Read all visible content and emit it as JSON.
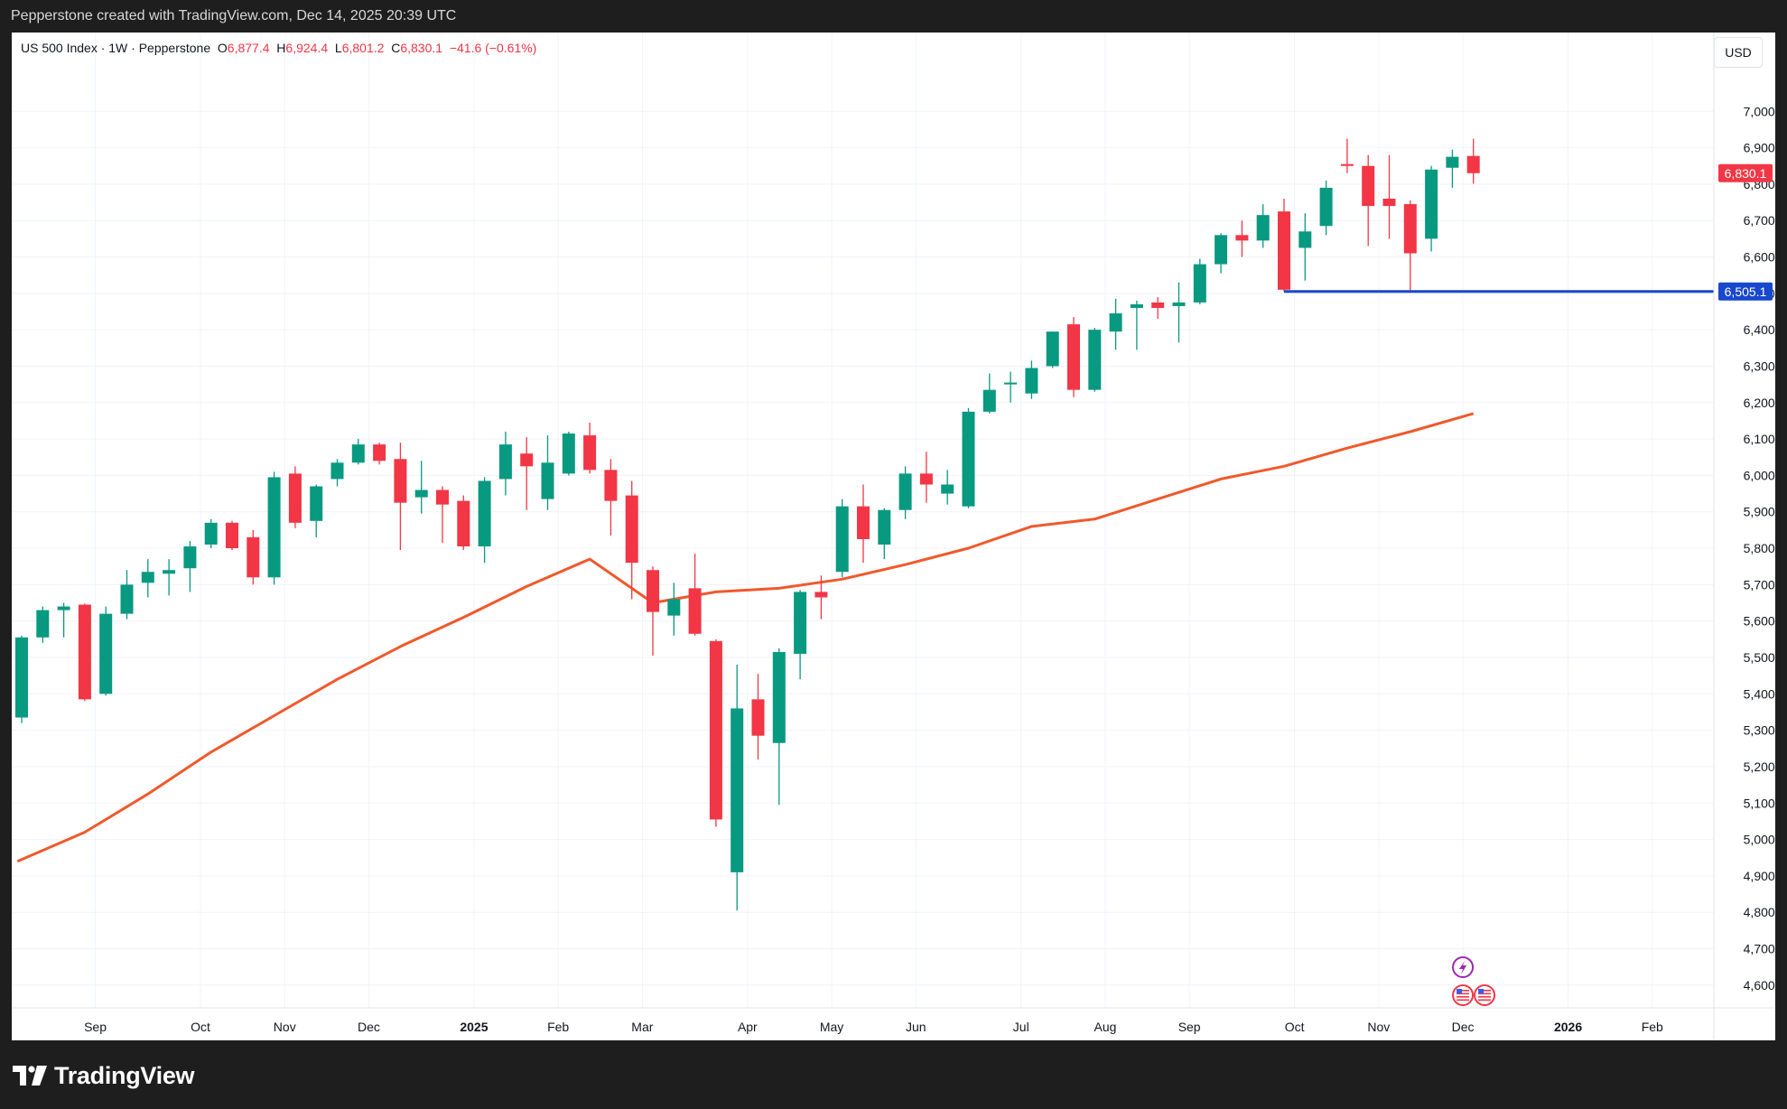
{
  "header": {
    "attribution": "Pepperstone created with TradingView.com, Dec 14, 2025 20:39 UTC"
  },
  "legend": {
    "symbol": "US 500 Index · 1W · Pepperstone",
    "o_label": "O",
    "o_value": "6,877.4",
    "h_label": "H",
    "h_value": "6,924.4",
    "l_label": "L",
    "l_value": "6,801.2",
    "c_label": "C",
    "c_value": "6,830.1",
    "change": "−41.6 (−0.61%)"
  },
  "currency": "USD",
  "price_badges": {
    "last": "6,830.1",
    "level": "6,505.1"
  },
  "footer": {
    "logo_text": "TradingView"
  },
  "colors": {
    "up": "#089981",
    "down": "#f23645",
    "ma": "#f0592b",
    "level": "#1848cc",
    "grid": "#f0f3fa",
    "axis_text": "#131722"
  },
  "icons": [
    "lightning-icon",
    "us-flag-icon",
    "us-flag-icon"
  ],
  "chart_data": {
    "type": "candlestick",
    "interval": "1W",
    "ylim": [
      4550,
      7080
    ],
    "y_ticks": [
      {
        "value": 4600,
        "label": "4,600.0"
      },
      {
        "value": 4700,
        "label": "4,700.0"
      },
      {
        "value": 4800,
        "label": "4,800.0"
      },
      {
        "value": 4900,
        "label": "4,900.0"
      },
      {
        "value": 5000,
        "label": "5,000.0"
      },
      {
        "value": 5100,
        "label": "5,100.0"
      },
      {
        "value": 5200,
        "label": "5,200.0"
      },
      {
        "value": 5300,
        "label": "5,300.0"
      },
      {
        "value": 5400,
        "label": "5,400.0"
      },
      {
        "value": 5500,
        "label": "5,500.0"
      },
      {
        "value": 5600,
        "label": "5,600.0"
      },
      {
        "value": 5700,
        "label": "5,700.0"
      },
      {
        "value": 5800,
        "label": "5,800.0"
      },
      {
        "value": 5900,
        "label": "5,900.0"
      },
      {
        "value": 6000,
        "label": "6,000.0"
      },
      {
        "value": 6100,
        "label": "6,100.0"
      },
      {
        "value": 6200,
        "label": "6,200.0"
      },
      {
        "value": 6300,
        "label": "6,300.0"
      },
      {
        "value": 6400,
        "label": "6,400.0"
      },
      {
        "value": 6500,
        "label": "6,500.0"
      },
      {
        "value": 6600,
        "label": "6,600.0"
      },
      {
        "value": 6700,
        "label": "6,700.0"
      },
      {
        "value": 6800,
        "label": "6,800.0"
      },
      {
        "value": 6900,
        "label": "6,900.0"
      },
      {
        "value": 7000,
        "label": "7,000.0"
      }
    ],
    "x_ticks": [
      {
        "bar": 3.5,
        "label": "Sep",
        "bold": false
      },
      {
        "bar": 8.5,
        "label": "Oct",
        "bold": false
      },
      {
        "bar": 12.5,
        "label": "Nov",
        "bold": false
      },
      {
        "bar": 16.5,
        "label": "Dec",
        "bold": false
      },
      {
        "bar": 21.5,
        "label": "2025",
        "bold": true
      },
      {
        "bar": 25.5,
        "label": "Feb",
        "bold": false
      },
      {
        "bar": 29.5,
        "label": "Mar",
        "bold": false
      },
      {
        "bar": 34.5,
        "label": "Apr",
        "bold": false
      },
      {
        "bar": 38.5,
        "label": "May",
        "bold": false
      },
      {
        "bar": 42.5,
        "label": "Jun",
        "bold": false
      },
      {
        "bar": 47.5,
        "label": "Jul",
        "bold": false
      },
      {
        "bar": 51.5,
        "label": "Aug",
        "bold": false
      },
      {
        "bar": 55.5,
        "label": "Sep",
        "bold": false
      },
      {
        "bar": 60.5,
        "label": "Oct",
        "bold": false
      },
      {
        "bar": 64.5,
        "label": "Nov",
        "bold": false
      },
      {
        "bar": 68.5,
        "label": "Dec",
        "bold": false
      },
      {
        "bar": 73.5,
        "label": "2026",
        "bold": true
      },
      {
        "bar": 77.5,
        "label": "Feb",
        "bold": false
      }
    ],
    "candles": [
      {
        "o": 5335,
        "h": 5560,
        "l": 5320,
        "c": 5555
      },
      {
        "o": 5555,
        "h": 5640,
        "l": 5540,
        "c": 5630
      },
      {
        "o": 5630,
        "h": 5650,
        "l": 5555,
        "c": 5640
      },
      {
        "o": 5645,
        "h": 5648,
        "l": 5380,
        "c": 5385
      },
      {
        "o": 5400,
        "h": 5640,
        "l": 5395,
        "c": 5620
      },
      {
        "o": 5620,
        "h": 5740,
        "l": 5605,
        "c": 5700
      },
      {
        "o": 5705,
        "h": 5770,
        "l": 5665,
        "c": 5735
      },
      {
        "o": 5730,
        "h": 5770,
        "l": 5670,
        "c": 5740
      },
      {
        "o": 5745,
        "h": 5820,
        "l": 5680,
        "c": 5805
      },
      {
        "o": 5810,
        "h": 5880,
        "l": 5800,
        "c": 5870
      },
      {
        "o": 5870,
        "h": 5875,
        "l": 5795,
        "c": 5800
      },
      {
        "o": 5830,
        "h": 5850,
        "l": 5700,
        "c": 5720
      },
      {
        "o": 5720,
        "h": 6010,
        "l": 5700,
        "c": 5995
      },
      {
        "o": 6005,
        "h": 6025,
        "l": 5855,
        "c": 5870
      },
      {
        "o": 5875,
        "h": 5975,
        "l": 5830,
        "c": 5970
      },
      {
        "o": 5990,
        "h": 6045,
        "l": 5970,
        "c": 6035
      },
      {
        "o": 6035,
        "h": 6100,
        "l": 6030,
        "c": 6085
      },
      {
        "o": 6085,
        "h": 6090,
        "l": 6030,
        "c": 6040
      },
      {
        "o": 6045,
        "h": 6090,
        "l": 5795,
        "c": 5925
      },
      {
        "o": 5940,
        "h": 6040,
        "l": 5895,
        "c": 5960
      },
      {
        "o": 5960,
        "h": 5970,
        "l": 5815,
        "c": 5920
      },
      {
        "o": 5930,
        "h": 5945,
        "l": 5795,
        "c": 5805
      },
      {
        "o": 5805,
        "h": 5995,
        "l": 5760,
        "c": 5985
      },
      {
        "o": 5990,
        "h": 6120,
        "l": 5945,
        "c": 6085
      },
      {
        "o": 6060,
        "h": 6105,
        "l": 5905,
        "c": 6025
      },
      {
        "o": 5935,
        "h": 6110,
        "l": 5905,
        "c": 6035
      },
      {
        "o": 6005,
        "h": 6120,
        "l": 6000,
        "c": 6115
      },
      {
        "o": 6110,
        "h": 6145,
        "l": 6005,
        "c": 6015
      },
      {
        "o": 6015,
        "h": 6045,
        "l": 5835,
        "c": 5930
      },
      {
        "o": 5945,
        "h": 5985,
        "l": 5660,
        "c": 5760
      },
      {
        "o": 5740,
        "h": 5750,
        "l": 5505,
        "c": 5625
      },
      {
        "o": 5615,
        "h": 5705,
        "l": 5560,
        "c": 5660
      },
      {
        "o": 5690,
        "h": 5785,
        "l": 5560,
        "c": 5565
      },
      {
        "o": 5545,
        "h": 5550,
        "l": 5035,
        "c": 5055
      },
      {
        "o": 4910,
        "h": 5480,
        "l": 4805,
        "c": 5360
      },
      {
        "o": 5385,
        "h": 5455,
        "l": 5220,
        "c": 5285
      },
      {
        "o": 5265,
        "h": 5525,
        "l": 5095,
        "c": 5515
      },
      {
        "o": 5510,
        "h": 5685,
        "l": 5440,
        "c": 5680
      },
      {
        "o": 5680,
        "h": 5725,
        "l": 5605,
        "c": 5665
      },
      {
        "o": 5735,
        "h": 5935,
        "l": 5720,
        "c": 5915
      },
      {
        "o": 5915,
        "h": 5975,
        "l": 5760,
        "c": 5825
      },
      {
        "o": 5810,
        "h": 5910,
        "l": 5770,
        "c": 5905
      },
      {
        "o": 5905,
        "h": 6025,
        "l": 5880,
        "c": 6005
      },
      {
        "o": 6005,
        "h": 6065,
        "l": 5925,
        "c": 5975
      },
      {
        "o": 5950,
        "h": 6015,
        "l": 5920,
        "c": 5975
      },
      {
        "o": 5915,
        "h": 6185,
        "l": 5910,
        "c": 6175
      },
      {
        "o": 6175,
        "h": 6280,
        "l": 6170,
        "c": 6235
      },
      {
        "o": 6250,
        "h": 6285,
        "l": 6200,
        "c": 6255
      },
      {
        "o": 6225,
        "h": 6315,
        "l": 6210,
        "c": 6295
      },
      {
        "o": 6300,
        "h": 6395,
        "l": 6295,
        "c": 6395
      },
      {
        "o": 6415,
        "h": 6435,
        "l": 6215,
        "c": 6235
      },
      {
        "o": 6235,
        "h": 6405,
        "l": 6230,
        "c": 6400
      },
      {
        "o": 6395,
        "h": 6485,
        "l": 6345,
        "c": 6445
      },
      {
        "o": 6460,
        "h": 6480,
        "l": 6345,
        "c": 6470
      },
      {
        "o": 6475,
        "h": 6490,
        "l": 6430,
        "c": 6460
      },
      {
        "o": 6465,
        "h": 6530,
        "l": 6365,
        "c": 6475
      },
      {
        "o": 6475,
        "h": 6595,
        "l": 6470,
        "c": 6580
      },
      {
        "o": 6580,
        "h": 6665,
        "l": 6555,
        "c": 6660
      },
      {
        "o": 6660,
        "h": 6700,
        "l": 6600,
        "c": 6645
      },
      {
        "o": 6645,
        "h": 6745,
        "l": 6625,
        "c": 6715
      },
      {
        "o": 6725,
        "h": 6760,
        "l": 6505,
        "c": 6510
      },
      {
        "o": 6625,
        "h": 6720,
        "l": 6535,
        "c": 6670
      },
      {
        "o": 6685,
        "h": 6810,
        "l": 6660,
        "c": 6790
      },
      {
        "o": 6855,
        "h": 6925,
        "l": 6830,
        "c": 6850
      },
      {
        "o": 6850,
        "h": 6880,
        "l": 6630,
        "c": 6740
      },
      {
        "o": 6760,
        "h": 6880,
        "l": 6650,
        "c": 6740
      },
      {
        "o": 6745,
        "h": 6755,
        "l": 6505,
        "c": 6610
      },
      {
        "o": 6650,
        "h": 6850,
        "l": 6615,
        "c": 6840
      },
      {
        "o": 6845,
        "h": 6895,
        "l": 6790,
        "c": 6875
      },
      {
        "o": 6877.4,
        "h": 6924.4,
        "l": 6801.2,
        "c": 6830.1
      }
    ],
    "moving_average": [
      {
        "bar": -0.2,
        "v": 4940
      },
      {
        "bar": 3,
        "v": 5020
      },
      {
        "bar": 6,
        "v": 5125
      },
      {
        "bar": 9,
        "v": 5240
      },
      {
        "bar": 12,
        "v": 5340
      },
      {
        "bar": 15,
        "v": 5440
      },
      {
        "bar": 18,
        "v": 5530
      },
      {
        "bar": 21,
        "v": 5610
      },
      {
        "bar": 24,
        "v": 5695
      },
      {
        "bar": 27,
        "v": 5770
      },
      {
        "bar": 30,
        "v": 5650
      },
      {
        "bar": 33,
        "v": 5680
      },
      {
        "bar": 36,
        "v": 5690
      },
      {
        "bar": 39,
        "v": 5715
      },
      {
        "bar": 42,
        "v": 5755
      },
      {
        "bar": 45,
        "v": 5800
      },
      {
        "bar": 48,
        "v": 5860
      },
      {
        "bar": 51,
        "v": 5880
      },
      {
        "bar": 54,
        "v": 5935
      },
      {
        "bar": 57,
        "v": 5990
      },
      {
        "bar": 60,
        "v": 6025
      },
      {
        "bar": 63,
        "v": 6075
      },
      {
        "bar": 66,
        "v": 6120
      },
      {
        "bar": 69,
        "v": 6170
      }
    ],
    "horizontal_level": {
      "value": 6505.1,
      "from_bar": 60
    }
  }
}
